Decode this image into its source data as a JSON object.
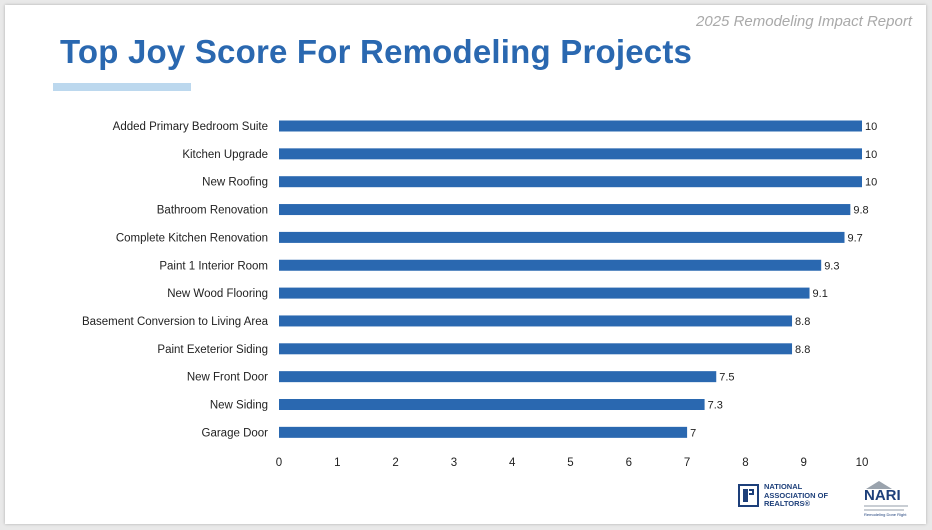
{
  "header": {
    "report_name": "2025 Remodeling Impact Report",
    "title": "Top Joy Score For Remodeling Projects"
  },
  "logos": {
    "nar_lines": [
      "NATIONAL",
      "ASSOCIATION OF",
      "REALTORS®"
    ],
    "nari_name": "NARI",
    "nari_tagline": "Remodeling Done Right"
  },
  "colors": {
    "bar": "#2a68b0",
    "title": "#2a68b0",
    "accent_underline": "#bcd8ee"
  },
  "chart_data": {
    "type": "bar",
    "orientation": "horizontal",
    "categories": [
      "Added Primary Bedroom Suite",
      "Kitchen Upgrade",
      "New Roofing",
      "Bathroom Renovation",
      "Complete Kitchen Renovation",
      "Paint 1 Interior Room",
      "New Wood Flooring",
      "Basement Conversion to Living Area",
      "Paint Exeterior Siding",
      "New Front Door",
      "New Siding",
      "Garage Door"
    ],
    "values": [
      10,
      10,
      10,
      9.8,
      9.7,
      9.3,
      9.1,
      8.8,
      8.8,
      7.5,
      7.3,
      7
    ],
    "value_labels": [
      "10",
      "10",
      "10",
      "9.8",
      "9.7",
      "9.3",
      "9.1",
      "8.8",
      "8.8",
      "7.5",
      "7.3",
      "7"
    ],
    "xlim": [
      0,
      10
    ],
    "xticks": [
      "0",
      "1",
      "2",
      "3",
      "4",
      "5",
      "6",
      "7",
      "8",
      "9",
      "10"
    ],
    "grid": false,
    "legend": "none"
  }
}
